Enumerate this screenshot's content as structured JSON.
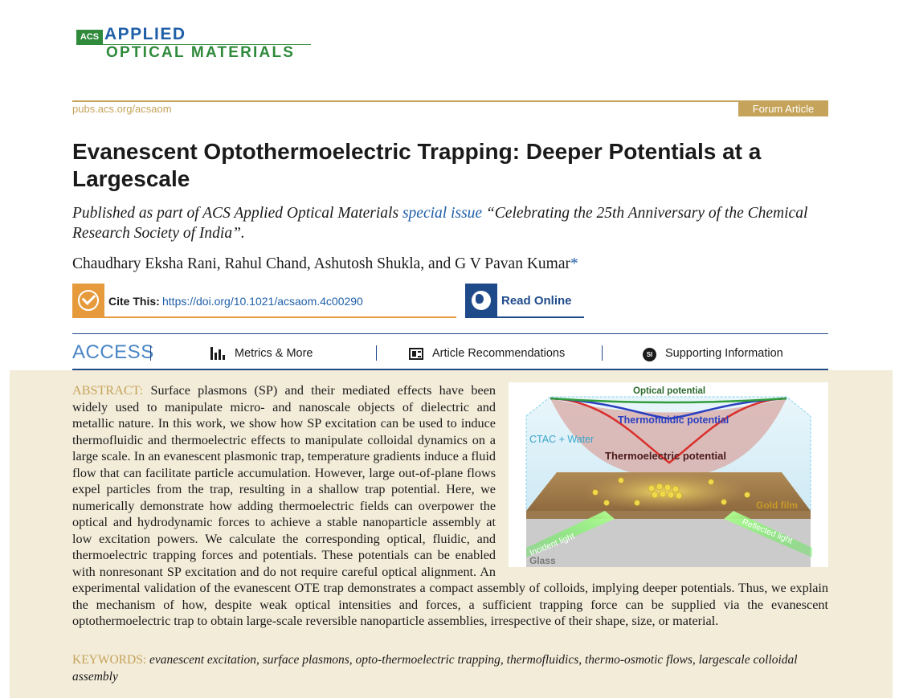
{
  "journal": {
    "logo_acs": "ACS",
    "logo_line1": "APPLIED",
    "logo_line2": "OPTICAL MATERIALS",
    "url": "pubs.acs.org/acsaom",
    "article_type": "Forum Article"
  },
  "article": {
    "title": "Evanescent Optothermoelectric Trapping: Deeper Potentials at a Largescale",
    "pub_note_prefix": "Published as part of ACS Applied Optical Materials ",
    "pub_note_link": "special issue",
    "pub_note_suffix": " “Celebrating the 25th Anniversary of the Chemical Research Society of India”.",
    "authors": "Chaudhary Eksha Rani, Rahul Chand, Ashutosh Shukla, and G V Pavan Kumar",
    "corresponding_mark": "*"
  },
  "cite": {
    "label": "Cite This:",
    "doi": "https://doi.org/10.1021/acsaom.4c00290"
  },
  "read_online": {
    "label": "Read Online"
  },
  "access_bar": {
    "access_label": "ACCESS",
    "metrics_label": "Metrics & More",
    "recommendations_label": "Article Recommendations",
    "supporting_label": "Supporting Information",
    "si_badge": "SI"
  },
  "abstract": {
    "heading": "ABSTRACT:",
    "text": "Surface plasmons (SP) and their mediated effects have been widely used to manipulate micro- and nanoscale objects of dielectric and metallic nature. In this work, we show how SP excitation can be used to induce thermofluidic and thermoelectric effects to manipulate colloidal dynamics on a large scale. In an evanescent plasmonic trap, temperature gradients induce a fluid flow that can facilitate particle accumulation. However, large out-of-plane flows expel particles from the trap, resulting in a shallow trap potential. Here, we numerically demonstrate how adding thermoelectric fields can overpower the optical and hydrodynamic forces to achieve a stable nanoparticle assembly at low excitation powers. We calculate the corresponding optical, fluidic, and thermoelectric trapping forces and potentials. These potentials can be enabled with nonresonant SP excitation and do not require careful optical alignment. An experimental validation of the evanescent OTE trap demonstrates a compact assembly of colloids, implying deeper potentials. Thus, we explain the mechanism of how, despite weak optical intensities and forces, a sufficient trapping force can be supplied via the evanescent optothermoelectric trap to obtain large-scale reversible nanoparticle assemblies, irrespective of their shape, size, or material."
  },
  "figure": {
    "optical_potential": "Optical potential",
    "thermofluidic_potential": "Thermofluidic potential",
    "medium": "CTAC + Water",
    "thermoelectric_potential": "Thermoelectric potential",
    "gold_film": "Gold film",
    "incident_light": "Incident light",
    "reflected_light": "Reflected light",
    "glass": "Glass"
  },
  "keywords": {
    "heading": "KEYWORDS:",
    "text": "evanescent excitation, surface plasmons, opto-thermoelectric trapping, thermofluidics, thermo-osmotic flows, largescale colloidal assembly"
  },
  "colors": {
    "gold_accent": "#c5a35a",
    "navy": "#1f4a8a",
    "cite_orange": "#e69a3c",
    "panel_bg": "#f3ecd9"
  }
}
